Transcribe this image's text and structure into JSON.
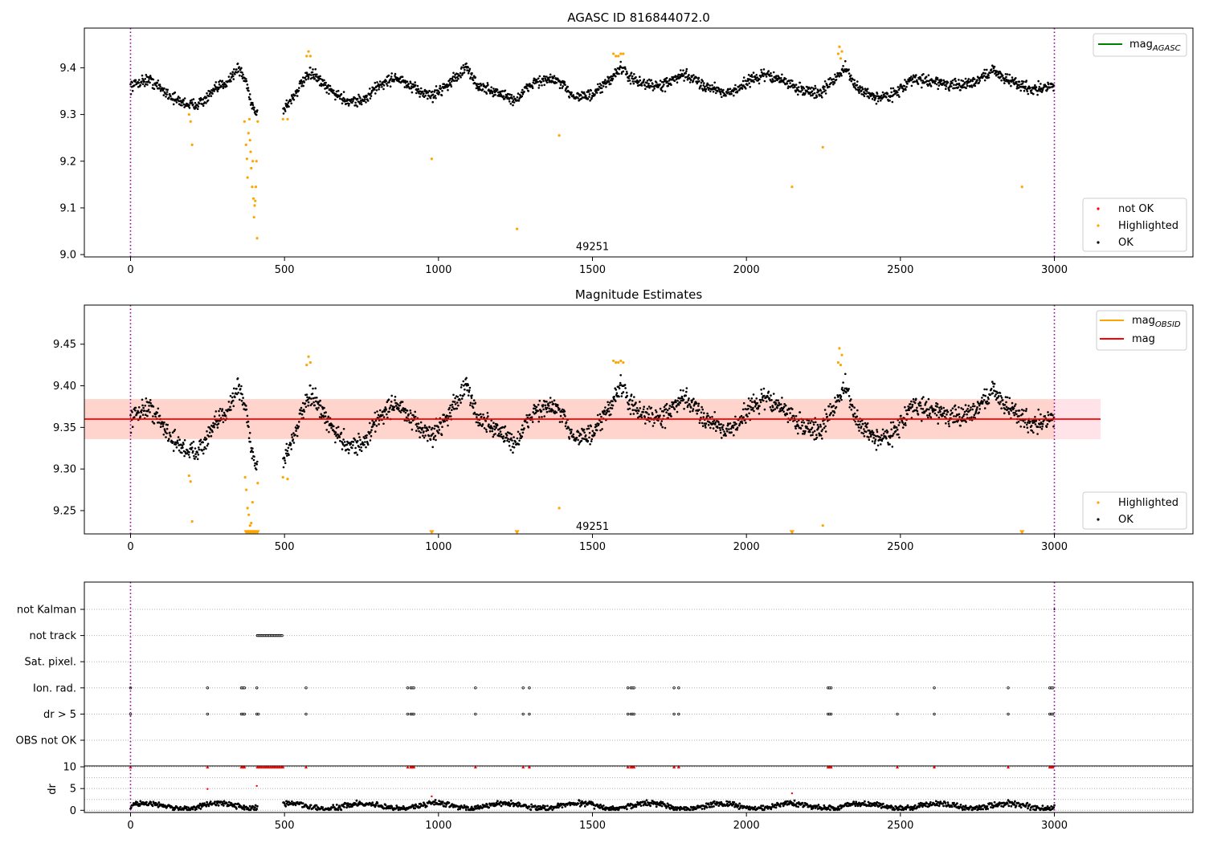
{
  "chart_data": [
    {
      "type": "scatter",
      "title": "AGASC ID 816844072.0",
      "xlim": [
        -150,
        3450
      ],
      "ylim": [
        8.995,
        9.485
      ],
      "xticks": [
        0,
        500,
        1000,
        1500,
        2000,
        2500,
        3000
      ],
      "yticks": [
        "9.0",
        "9.1",
        "9.2",
        "9.3",
        "9.4"
      ],
      "vlines": [
        0,
        3000
      ],
      "annotation": {
        "text": "49251",
        "x": 1500,
        "y": 9.01
      },
      "line_legend": [
        {
          "label": "mag",
          "subscript": "AGASC",
          "color": "#008000"
        }
      ],
      "legend": [
        {
          "label": "not OK",
          "color": "#ff0000"
        },
        {
          "label": "Highlighted",
          "color": "#ffa500"
        },
        {
          "label": "OK",
          "color": "#000000"
        }
      ],
      "highlighted": [
        [
          190,
          9.3
        ],
        [
          195,
          9.285
        ],
        [
          200,
          9.235
        ],
        [
          370,
          9.285
        ],
        [
          375,
          9.235
        ],
        [
          378,
          9.205
        ],
        [
          380,
          9.165
        ],
        [
          383,
          9.26
        ],
        [
          386,
          9.29
        ],
        [
          388,
          9.245
        ],
        [
          390,
          9.22
        ],
        [
          392,
          9.185
        ],
        [
          395,
          9.145
        ],
        [
          397,
          9.2
        ],
        [
          399,
          9.12
        ],
        [
          401,
          9.08
        ],
        [
          403,
          9.105
        ],
        [
          405,
          9.115
        ],
        [
          407,
          9.145
        ],
        [
          409,
          9.2
        ],
        [
          411,
          9.035
        ],
        [
          413,
          9.285
        ],
        [
          495,
          9.29
        ],
        [
          510,
          9.29
        ],
        [
          572,
          9.425
        ],
        [
          578,
          9.435
        ],
        [
          584,
          9.425
        ],
        [
          978,
          9.205
        ],
        [
          1255,
          9.055
        ],
        [
          1392,
          9.255
        ],
        [
          1568,
          9.43
        ],
        [
          1576,
          9.425
        ],
        [
          1584,
          9.425
        ],
        [
          1592,
          9.43
        ],
        [
          1600,
          9.43
        ],
        [
          2148,
          9.145
        ],
        [
          2248,
          9.23
        ],
        [
          2298,
          9.43
        ],
        [
          2302,
          9.445
        ],
        [
          2306,
          9.42
        ],
        [
          2310,
          9.435
        ],
        [
          2895,
          9.145
        ]
      ],
      "ok_trend": {
        "x_range": [
          0,
          3000
        ],
        "gaps": [
          [
            412,
            495
          ]
        ],
        "knots": [
          [
            0,
            9.36
          ],
          [
            30,
            9.37
          ],
          [
            60,
            9.375
          ],
          [
            100,
            9.355
          ],
          [
            150,
            9.33
          ],
          [
            200,
            9.32
          ],
          [
            240,
            9.33
          ],
          [
            270,
            9.35
          ],
          [
            320,
            9.375
          ],
          [
            350,
            9.4
          ],
          [
            375,
            9.37
          ],
          [
            395,
            9.32
          ],
          [
            412,
            9.3
          ],
          [
            495,
            9.31
          ],
          [
            520,
            9.33
          ],
          [
            560,
            9.37
          ],
          [
            590,
            9.39
          ],
          [
            630,
            9.36
          ],
          [
            700,
            9.33
          ],
          [
            760,
            9.33
          ],
          [
            800,
            9.36
          ],
          [
            860,
            9.38
          ],
          [
            920,
            9.355
          ],
          [
            980,
            9.34
          ],
          [
            1040,
            9.37
          ],
          [
            1090,
            9.4
          ],
          [
            1130,
            9.36
          ],
          [
            1200,
            9.345
          ],
          [
            1250,
            9.33
          ],
          [
            1310,
            9.37
          ],
          [
            1380,
            9.375
          ],
          [
            1440,
            9.34
          ],
          [
            1500,
            9.34
          ],
          [
            1550,
            9.37
          ],
          [
            1590,
            9.4
          ],
          [
            1640,
            9.37
          ],
          [
            1720,
            9.36
          ],
          [
            1800,
            9.385
          ],
          [
            1870,
            9.36
          ],
          [
            1950,
            9.345
          ],
          [
            2000,
            9.37
          ],
          [
            2060,
            9.385
          ],
          [
            2110,
            9.375
          ],
          [
            2170,
            9.355
          ],
          [
            2240,
            9.345
          ],
          [
            2290,
            9.38
          ],
          [
            2320,
            9.4
          ],
          [
            2360,
            9.355
          ],
          [
            2430,
            9.335
          ],
          [
            2480,
            9.345
          ],
          [
            2540,
            9.375
          ],
          [
            2620,
            9.37
          ],
          [
            2680,
            9.36
          ],
          [
            2740,
            9.37
          ],
          [
            2800,
            9.395
          ],
          [
            2860,
            9.37
          ],
          [
            2930,
            9.355
          ],
          [
            3000,
            9.36
          ]
        ],
        "scatter": 0.012
      }
    },
    {
      "type": "scatter",
      "title": "Magnitude Estimates",
      "xlim": [
        -150,
        3450
      ],
      "ylim": [
        9.222,
        9.497
      ],
      "xticks": [
        0,
        500,
        1000,
        1500,
        2000,
        2500,
        3000
      ],
      "yticks": [
        "9.25",
        "9.30",
        "9.35",
        "9.40",
        "9.45"
      ],
      "vlines": [
        0,
        3000
      ],
      "annotation": {
        "text": "49251",
        "x": 1500,
        "y": 9.227
      },
      "mean_line": {
        "y": 9.36,
        "x_range": [
          -150,
          3150
        ],
        "color": "#ff0000"
      },
      "band": {
        "y_range": [
          9.336,
          9.384
        ],
        "x_range": [
          -150,
          3150
        ],
        "fill": "#ffd4cc"
      },
      "band_outer": {
        "x_range": [
          3000,
          3150
        ],
        "fill": "#ffe3e8"
      },
      "line_legend": [
        {
          "label": "mag",
          "subscript": "OBSID",
          "color": "#ffa500"
        },
        {
          "label": "mag",
          "subscript": "",
          "color": "#ff0000"
        }
      ],
      "legend": [
        {
          "label": "Highlighted",
          "color": "#ffa500"
        },
        {
          "label": "OK",
          "color": "#000000"
        }
      ],
      "highlighted": [
        [
          190,
          9.292
        ],
        [
          195,
          9.285
        ],
        [
          200,
          9.237
        ],
        [
          372,
          9.29
        ],
        [
          376,
          9.275
        ],
        [
          380,
          9.253
        ],
        [
          384,
          9.245
        ],
        [
          388,
          9.232
        ],
        [
          392,
          9.235
        ],
        [
          396,
          9.26
        ],
        [
          413,
          9.283
        ],
        [
          495,
          9.29
        ],
        [
          510,
          9.288
        ],
        [
          572,
          9.425
        ],
        [
          578,
          9.435
        ],
        [
          584,
          9.428
        ],
        [
          1392,
          9.253
        ],
        [
          1568,
          9.43
        ],
        [
          1576,
          9.428
        ],
        [
          1584,
          9.428
        ],
        [
          1592,
          9.43
        ],
        [
          1600,
          9.428
        ],
        [
          2248,
          9.232
        ],
        [
          2298,
          9.428
        ],
        [
          2302,
          9.445
        ],
        [
          2306,
          9.425
        ],
        [
          2310,
          9.437
        ]
      ],
      "clipped_triangles": [
        [
          376,
          9.224
        ],
        [
          382,
          9.224
        ],
        [
          388,
          9.224
        ],
        [
          394,
          9.224
        ],
        [
          400,
          9.224
        ],
        [
          406,
          9.224
        ],
        [
          412,
          9.224
        ],
        [
          978,
          9.224
        ],
        [
          1255,
          9.224
        ],
        [
          2148,
          9.224
        ],
        [
          2895,
          9.224
        ]
      ],
      "ok_trend": "same as chart 1"
    },
    {
      "type": "scatter",
      "title": "",
      "xlim": [
        -150,
        3450
      ],
      "categories": [
        "not Kalman",
        "not track",
        "Sat. pixel.",
        "Ion. rad.",
        "dr > 5",
        "OBS not OK"
      ],
      "not_track_range": [
        412,
        495
      ],
      "ion_rad_x": [
        0,
        250,
        360,
        365,
        370,
        410,
        570,
        900,
        910,
        915,
        920,
        1120,
        1275,
        1295,
        1615,
        1625,
        1630,
        1635,
        1765,
        1780,
        2265,
        2270,
        2275,
        2610,
        2850,
        2985,
        2990,
        2995
      ],
      "dr_gt5_x": [
        0,
        250,
        360,
        365,
        370,
        410,
        415,
        570,
        900,
        910,
        915,
        920,
        1120,
        1275,
        1295,
        1615,
        1625,
        1630,
        1635,
        1765,
        1780,
        2265,
        2270,
        2275,
        2490,
        2610,
        2850,
        2985,
        2990,
        2995
      ],
      "not_kalman_x": [
        3000
      ]
    },
    {
      "type": "scatter",
      "title": "",
      "xlim": [
        -150,
        3450
      ],
      "ylim": [
        -0.5,
        10.2
      ],
      "yticks": [
        "0",
        "5",
        "10"
      ],
      "ylabel": "dr",
      "capped_markers_x": [
        0,
        250,
        360,
        365,
        370,
        412,
        418,
        424,
        430,
        436,
        442,
        448,
        454,
        460,
        466,
        472,
        478,
        484,
        490,
        495,
        570,
        900,
        910,
        915,
        920,
        1120,
        1275,
        1295,
        1615,
        1625,
        1630,
        1635,
        1765,
        1780,
        2265,
        2270,
        2275,
        2490,
        2610,
        2850,
        2985,
        2990,
        2995
      ],
      "red_points": [
        [
          250,
          4.9
        ],
        [
          410,
          5.6
        ],
        [
          978,
          3.2
        ],
        [
          2148,
          3.9
        ]
      ],
      "ok_band": {
        "x_range": [
          0,
          3000
        ],
        "gaps": [
          [
            412,
            495
          ]
        ],
        "y_mean": 1.0,
        "y_spread": 0.8
      }
    }
  ]
}
